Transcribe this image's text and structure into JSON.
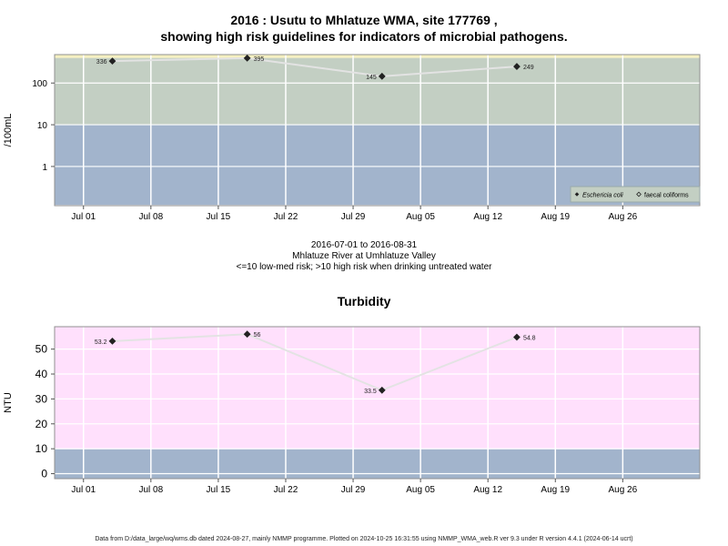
{
  "header": {
    "title_line1": "2016 : Usutu to Mhlatuze WMA, site 177769 ,",
    "title_line2": "showing high risk guidelines for indicators of microbial pathogens."
  },
  "middle": {
    "date_range": "2016-07-01 to 2016-08-31",
    "location": "Mhlatuze River at Umhlatuze Valley",
    "risk_note": "<=10 low-med risk; >10 high risk when drinking untreated water"
  },
  "footer": {
    "text": "Data from D:/data_large/wq/wms.db dated 2024-08-27, mainly NMMP programme. Plotted on 2024-10-25 16:31:55 using NMMP_WMA_web.R ver 9.3 under R version 4.4.1 (2024-06-14 ucrt)"
  },
  "colors": {
    "low_band": "#a2b4cc",
    "high_band_microbial": "#c3cfc3",
    "top_band_microbial": "#f5f0c0",
    "turbidity_bg": "#ffe0fc",
    "line": "#e3e3e3",
    "marker": "#222222"
  },
  "chart_data": [
    {
      "type": "line",
      "title": "",
      "ylabel": "/100mL",
      "yscale": "log",
      "y_ticks": [
        "1",
        "10",
        "100"
      ],
      "x_ticks": [
        "Jul 01",
        "Jul 08",
        "Jul 15",
        "Jul 22",
        "Jul 29",
        "Aug 05",
        "Aug 12",
        "Aug 19",
        "Aug 26"
      ],
      "xlim": [
        "2016-06-28",
        "2016-09-03"
      ],
      "bands": [
        {
          "from": 0.12,
          "to": 10,
          "color": "#a2b4cc"
        },
        {
          "from": 10,
          "to": 400,
          "color": "#c3cfc3"
        },
        {
          "from": 400,
          "to": 480,
          "color": "#f5f0c0"
        }
      ],
      "series": [
        {
          "name": "Eschericia coli",
          "x": [
            "2016-07-04",
            "2016-07-18",
            "2016-08-01",
            "2016-08-15"
          ],
          "y": [
            336,
            395,
            145,
            249
          ],
          "labels": [
            "336",
            "395",
            "145",
            "249"
          ]
        }
      ],
      "legend": {
        "position": "bottom-right",
        "entries": [
          {
            "label": "Eschericia coli",
            "marker": "filled-diamond"
          },
          {
            "label": "faecal coliforms",
            "marker": "open-diamond"
          }
        ]
      }
    },
    {
      "type": "line",
      "title": "Turbidity",
      "ylabel": "NTU",
      "yscale": "linear",
      "y_ticks": [
        "0",
        "10",
        "20",
        "30",
        "40",
        "50"
      ],
      "x_ticks": [
        "Jul 01",
        "Jul 08",
        "Jul 15",
        "Jul 22",
        "Jul 29",
        "Aug 05",
        "Aug 12",
        "Aug 19",
        "Aug 26"
      ],
      "xlim": [
        "2016-06-28",
        "2016-09-03"
      ],
      "bands": [
        {
          "from": -2,
          "to": 10,
          "color": "#a2b4cc"
        },
        {
          "from": 10,
          "to": 59,
          "color": "#ffe0fc"
        }
      ],
      "series": [
        {
          "x": [
            "2016-07-04",
            "2016-07-18",
            "2016-08-01",
            "2016-08-15"
          ],
          "y": [
            53.2,
            56,
            33.5,
            54.8
          ],
          "labels": [
            "53.2",
            "56",
            "33.5",
            "54.8"
          ]
        }
      ]
    }
  ]
}
